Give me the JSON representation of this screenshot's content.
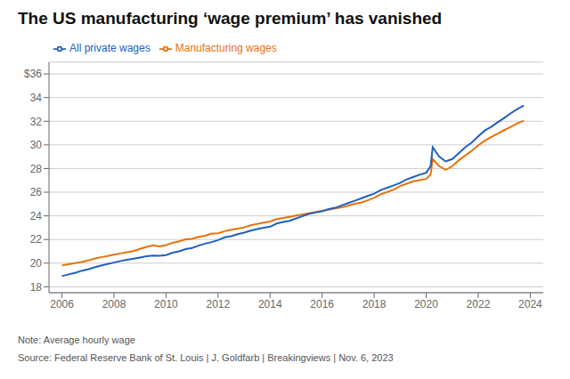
{
  "chart_data": {
    "type": "line",
    "title": "The US manufacturing ‘wage premium’ has vanished",
    "note": "Note: Average hourly wage",
    "source": "Source: Federal Reserve Bank of St. Louis | J. Goldfarb | Breakingviews | Nov. 6, 2023",
    "x": [
      2006.0,
      2006.25,
      2006.5,
      2006.75,
      2007.0,
      2007.25,
      2007.5,
      2007.75,
      2008.0,
      2008.25,
      2008.5,
      2008.75,
      2009.0,
      2009.25,
      2009.5,
      2009.75,
      2010.0,
      2010.25,
      2010.5,
      2010.75,
      2011.0,
      2011.25,
      2011.5,
      2011.75,
      2012.0,
      2012.25,
      2012.5,
      2012.75,
      2013.0,
      2013.25,
      2013.5,
      2013.75,
      2014.0,
      2014.25,
      2014.5,
      2014.75,
      2015.0,
      2015.25,
      2015.5,
      2015.75,
      2016.0,
      2016.25,
      2016.5,
      2016.75,
      2017.0,
      2017.25,
      2017.5,
      2017.75,
      2018.0,
      2018.25,
      2018.5,
      2018.75,
      2019.0,
      2019.25,
      2019.5,
      2019.75,
      2020.0,
      2020.17,
      2020.25,
      2020.5,
      2020.75,
      2021.0,
      2021.25,
      2021.5,
      2021.75,
      2022.0,
      2022.25,
      2022.5,
      2022.75,
      2023.0,
      2023.25,
      2023.5,
      2023.75
    ],
    "series": [
      {
        "name": "Manufacturing wages",
        "color": "#E8720C",
        "values": [
          19.82,
          19.9,
          20.0,
          20.1,
          20.22,
          20.38,
          20.5,
          20.6,
          20.72,
          20.82,
          20.92,
          21.02,
          21.2,
          21.38,
          21.5,
          21.42,
          21.52,
          21.72,
          21.85,
          22.02,
          22.05,
          22.22,
          22.32,
          22.5,
          22.52,
          22.7,
          22.82,
          22.92,
          23.02,
          23.2,
          23.32,
          23.42,
          23.52,
          23.72,
          23.82,
          23.92,
          24.02,
          24.12,
          24.22,
          24.32,
          24.42,
          24.52,
          24.62,
          24.72,
          24.85,
          25.02,
          25.12,
          25.32,
          25.52,
          25.82,
          26.02,
          26.22,
          26.52,
          26.72,
          26.92,
          27.02,
          27.12,
          27.5,
          28.8,
          28.2,
          27.9,
          28.2,
          28.7,
          29.1,
          29.5,
          29.95,
          30.35,
          30.65,
          30.95,
          31.25,
          31.52,
          31.82,
          32.05
        ]
      },
      {
        "name": "All private wages",
        "color": "#2060C0",
        "values": [
          18.9,
          19.05,
          19.18,
          19.35,
          19.48,
          19.65,
          19.8,
          19.92,
          20.05,
          20.18,
          20.28,
          20.38,
          20.48,
          20.58,
          20.65,
          20.62,
          20.68,
          20.88,
          21.0,
          21.18,
          21.28,
          21.48,
          21.65,
          21.78,
          21.95,
          22.18,
          22.28,
          22.45,
          22.58,
          22.75,
          22.88,
          23.0,
          23.08,
          23.35,
          23.48,
          23.58,
          23.78,
          23.98,
          24.18,
          24.28,
          24.38,
          24.58,
          24.68,
          24.88,
          25.08,
          25.28,
          25.48,
          25.68,
          25.88,
          26.18,
          26.38,
          26.58,
          26.78,
          27.08,
          27.28,
          27.48,
          27.65,
          28.2,
          29.8,
          29.0,
          28.6,
          28.8,
          29.3,
          29.8,
          30.2,
          30.72,
          31.22,
          31.52,
          31.92,
          32.28,
          32.68,
          33.02,
          33.32
        ]
      }
    ],
    "xlim": [
      2005.5,
      2024.5
    ],
    "xticks": [
      2006,
      2008,
      2010,
      2012,
      2014,
      2016,
      2018,
      2020,
      2022,
      2024
    ],
    "ylim": [
      17.5,
      37
    ],
    "yticks": [
      18,
      20,
      22,
      24,
      26,
      28,
      30,
      32,
      34,
      {
        "value": 36,
        "label": "$36"
      }
    ],
    "grid": true,
    "legend": "top"
  }
}
